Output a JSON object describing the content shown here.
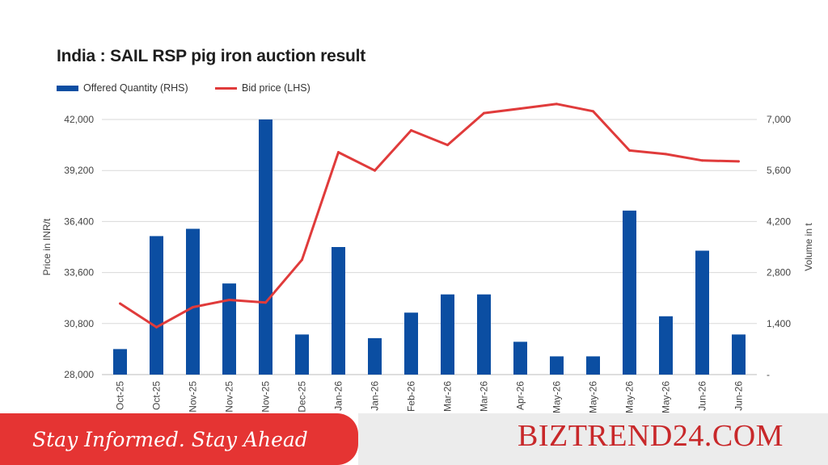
{
  "chart_data": {
    "type": "bar+line",
    "title": "India : SAIL RSP pig iron auction result",
    "categories": [
      "Oct-25",
      "Oct-25",
      "Nov-25",
      "Nov-25",
      "Nov-25",
      "Dec-25",
      "Jan-26",
      "Jan-26",
      "Feb-26",
      "Mar-26",
      "Mar-26",
      "Apr-26",
      "May-26",
      "May-26",
      "May-26",
      "May-26",
      "Jun-26",
      "Jun-26"
    ],
    "series": [
      {
        "name": "Offered Quantity (RHS)",
        "type": "bar",
        "axis": "right",
        "color": "#0b4ea2",
        "values": [
          700,
          3800,
          4000,
          2500,
          7000,
          1100,
          3500,
          1000,
          1700,
          2200,
          2200,
          900,
          500,
          500,
          4500,
          1600,
          3400,
          1100
        ]
      },
      {
        "name": "Bid price (LHS)",
        "type": "line",
        "axis": "left",
        "color": "#e03b3b",
        "values": [
          31900,
          30600,
          31700,
          32100,
          31950,
          34300,
          40200,
          39200,
          41400,
          40600,
          42350,
          42600,
          42850,
          42450,
          40300,
          40100,
          39750,
          39700
        ]
      }
    ],
    "ylabel_left": "Price in INR/t",
    "ylabel_right": "Volume in t",
    "ylim_left": [
      28000,
      42000
    ],
    "ylim_right": [
      0,
      7000
    ],
    "left_ticks": [
      "28,000",
      "30,800",
      "33,600",
      "36,400",
      "39,200",
      "42,000"
    ],
    "right_ticks": [
      "-",
      "1,400",
      "2,800",
      "4,200",
      "5,600",
      "7,000"
    ],
    "legend_position": "top-left",
    "grid": true
  },
  "legend": {
    "qty": "Offered Quantity (RHS)",
    "bid": "Bid price (LHS)"
  },
  "banner": {
    "tagline": "Stay Informed. Stay Ahead",
    "brand": "BIZTREND24.COM"
  }
}
